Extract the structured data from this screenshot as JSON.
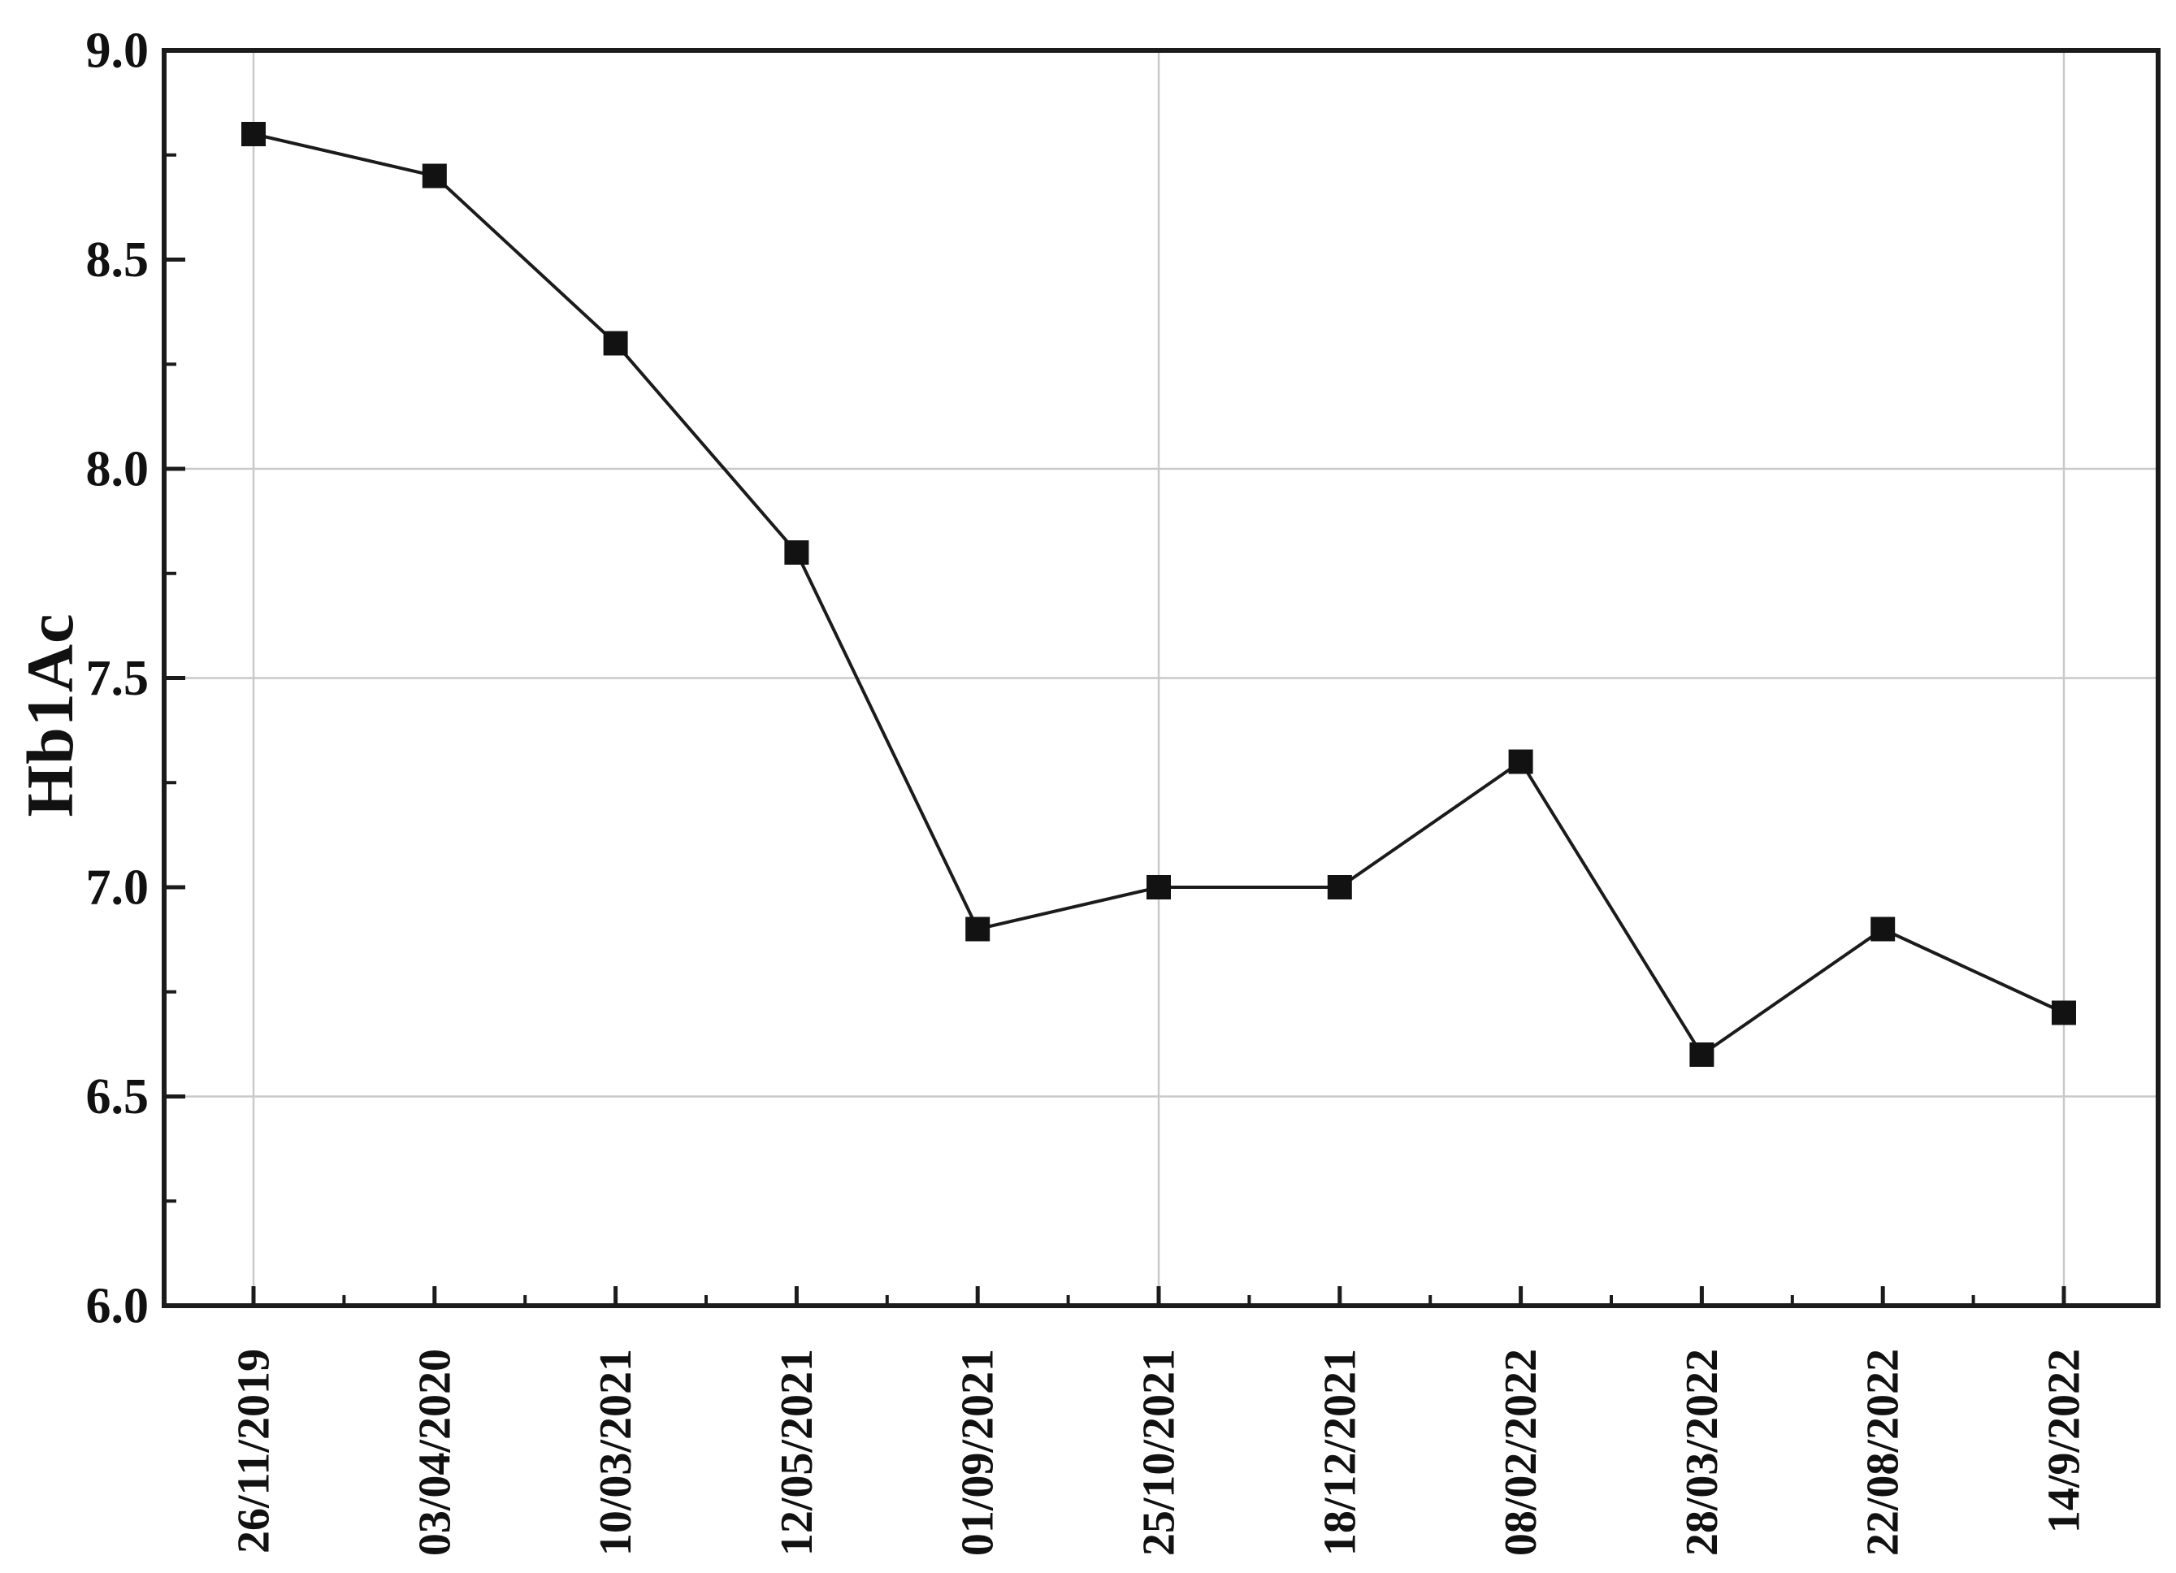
{
  "chart_data": {
    "type": "line",
    "title": "",
    "xlabel": "",
    "ylabel": "Hb1Ac",
    "categories": [
      "26/11/2019",
      "03/04/2020",
      "10/03/2021",
      "12/05/2021",
      "01/09/2021",
      "25/10/2021",
      "18/12/2021",
      "08/02/2022",
      "28/03/2022",
      "22/08/2022",
      "14/9/2022"
    ],
    "series": [
      {
        "name": "Hb1Ac",
        "values": [
          8.8,
          8.7,
          8.3,
          7.8,
          6.9,
          7.0,
          7.0,
          7.3,
          6.6,
          6.9,
          6.7
        ]
      }
    ],
    "ylim": [
      6.0,
      9.0
    ],
    "y_major_tick_values": [
      9.0,
      8.5,
      8.0,
      7.5,
      7.0,
      6.5,
      6.0
    ],
    "y_major_tick_labels": [
      "9.0",
      "8.5",
      "8.0",
      "7.5",
      "7.0",
      "6.5",
      "6.0"
    ],
    "y_minor_tick_values": [
      8.75,
      8.25,
      7.75,
      7.25,
      6.75,
      6.25
    ],
    "h_gridline_values": [
      8.0,
      7.5,
      6.5
    ],
    "v_gridline_category_indices": [
      0,
      5,
      10
    ],
    "x_tick_label_rotation_deg": 90,
    "marker": "filled-square",
    "legend": "none",
    "grid": "partial-light-gray"
  },
  "style": {
    "background": "#ffffff",
    "axis_color": "#1b1b1b",
    "grid_color": "#c9c9c9",
    "line_color": "#1b1b1b",
    "marker_color": "#121212",
    "label_color": "#111111"
  }
}
